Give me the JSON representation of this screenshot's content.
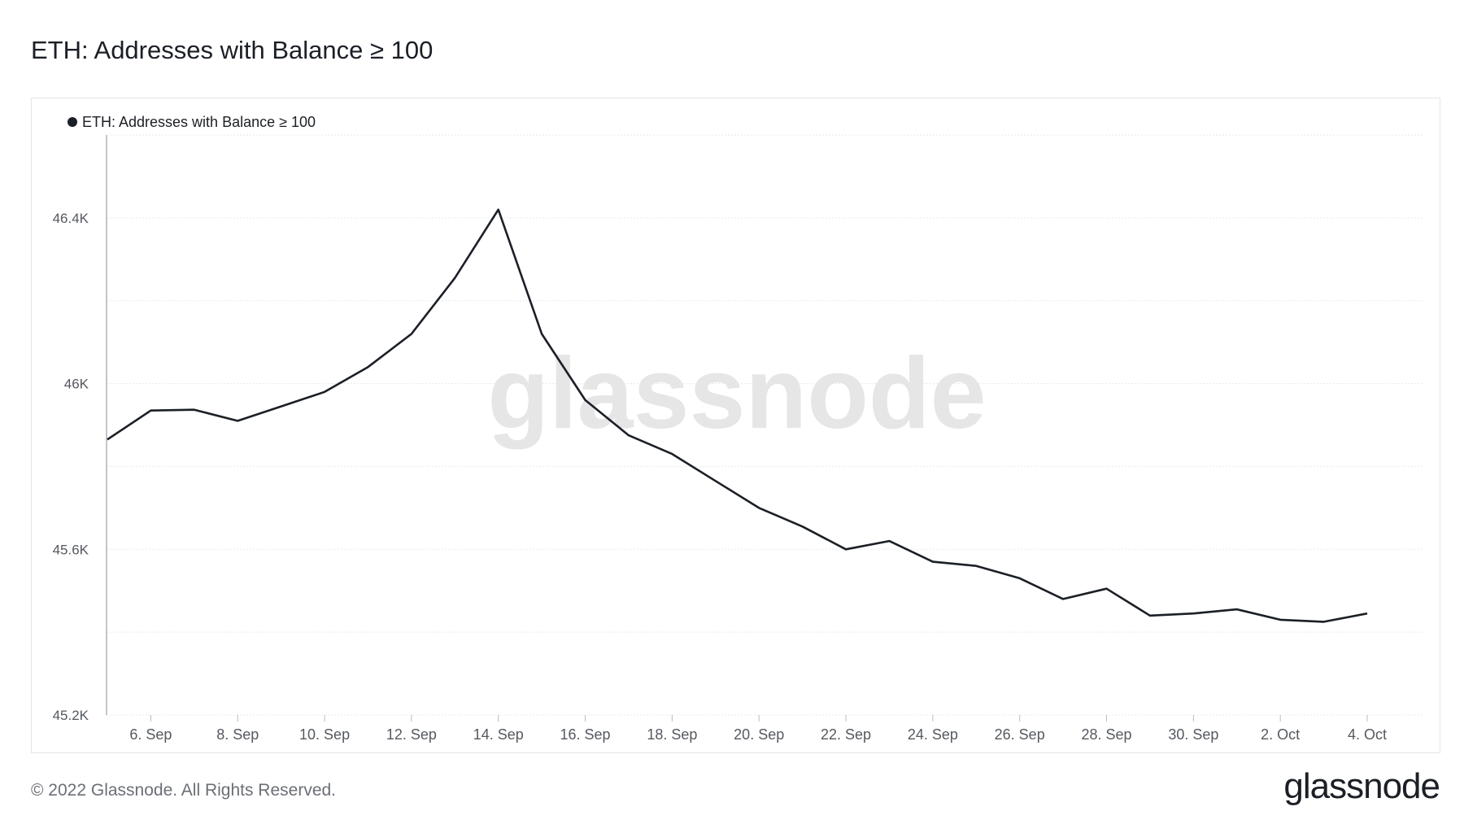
{
  "page": {
    "title": "ETH: Addresses with Balance ≥ 100",
    "copyright": "© 2022 Glassnode. All Rights Reserved.",
    "brand": "glassnode",
    "watermark": "glassnode"
  },
  "colors": {
    "line": "#1b1f26",
    "grid": "#e8eaee",
    "axis_text": "#55595f",
    "watermark": "#e6e6e6"
  },
  "chart_data": {
    "type": "line",
    "title": "ETH: Addresses with Balance ≥ 100",
    "legend": {
      "position": "top-left",
      "entries": [
        "ETH: Addresses with Balance ≥ 100"
      ]
    },
    "grid": true,
    "ylim": [
      45200,
      46600
    ],
    "y_ticks": [
      45200,
      45600,
      46000,
      46400
    ],
    "y_tick_labels": [
      "45.2K",
      "45.6K",
      "46K",
      "46.4K"
    ],
    "x_ticks": [
      "2022-09-06",
      "2022-09-08",
      "2022-09-10",
      "2022-09-12",
      "2022-09-14",
      "2022-09-16",
      "2022-09-18",
      "2022-09-20",
      "2022-09-22",
      "2022-09-24",
      "2022-09-26",
      "2022-09-28",
      "2022-09-30",
      "2022-10-02",
      "2022-10-04"
    ],
    "x_tick_labels": [
      "6. Sep",
      "8. Sep",
      "10. Sep",
      "12. Sep",
      "14. Sep",
      "16. Sep",
      "18. Sep",
      "20. Sep",
      "22. Sep",
      "24. Sep",
      "26. Sep",
      "28. Sep",
      "30. Sep",
      "2. Oct",
      "4. Oct"
    ],
    "series": [
      {
        "name": "ETH: Addresses with Balance ≥ 100",
        "x": [
          "2022-09-05",
          "2022-09-06",
          "2022-09-07",
          "2022-09-08",
          "2022-09-09",
          "2022-09-10",
          "2022-09-11",
          "2022-09-12",
          "2022-09-13",
          "2022-09-14",
          "2022-09-15",
          "2022-09-16",
          "2022-09-17",
          "2022-09-18",
          "2022-09-19",
          "2022-09-20",
          "2022-09-21",
          "2022-09-22",
          "2022-09-23",
          "2022-09-24",
          "2022-09-25",
          "2022-09-26",
          "2022-09-27",
          "2022-09-28",
          "2022-09-29",
          "2022-09-30",
          "2022-10-01",
          "2022-10-02",
          "2022-10-03",
          "2022-10-04"
        ],
        "values": [
          45865,
          45935,
          45937,
          45910,
          45945,
          45980,
          46040,
          46120,
          46255,
          46420,
          46120,
          45960,
          45875,
          45830,
          45765,
          45700,
          45655,
          45600,
          45620,
          45570,
          45560,
          45530,
          45480,
          45505,
          45440,
          45445,
          45455,
          45430,
          45425,
          45445
        ]
      }
    ]
  }
}
